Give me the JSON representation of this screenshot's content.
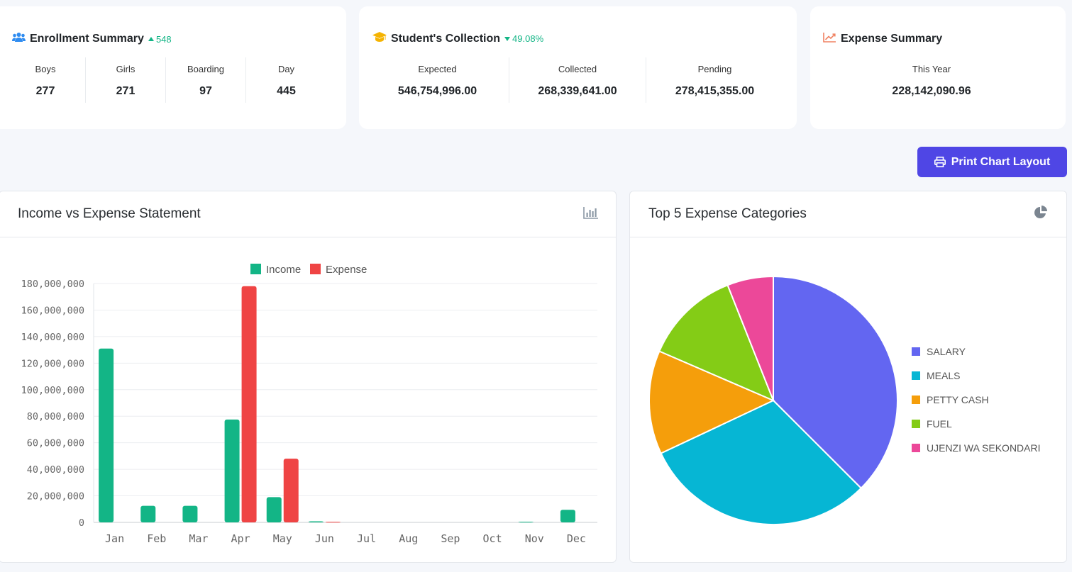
{
  "enrollment": {
    "title": "Enrollment Summary",
    "trend": "548",
    "items": [
      {
        "label": "Boys",
        "value": "277"
      },
      {
        "label": "Girls",
        "value": "271"
      },
      {
        "label": "Boarding",
        "value": "97"
      },
      {
        "label": "Day",
        "value": "445"
      }
    ]
  },
  "collection": {
    "title": "Student's Collection",
    "trend": "49.08%",
    "items": [
      {
        "label": "Expected",
        "value": "546,754,996.00"
      },
      {
        "label": "Collected",
        "value": "268,339,641.00"
      },
      {
        "label": "Pending",
        "value": "278,415,355.00"
      }
    ]
  },
  "expense_summary": {
    "title": "Expense Summary",
    "items": [
      {
        "label": "This Year",
        "value": "228,142,090.96"
      }
    ]
  },
  "toolbar": {
    "print_label": "Print Chart Layout"
  },
  "colors": {
    "income": "#13b586",
    "expense": "#ef4444",
    "accent": "#4f46e5",
    "trend_up": "#13b586"
  },
  "icons": {
    "enrollment": "users-icon",
    "collection": "graduation-cap-icon",
    "expense": "line-chart-icon",
    "print": "printer-icon",
    "bar_chart": "bar-chart-icon",
    "pie_chart": "pie-chart-icon"
  },
  "chart_data": [
    {
      "type": "bar",
      "title": "Income vs Expense Statement",
      "categories": [
        "Jan",
        "Feb",
        "Mar",
        "Apr",
        "May",
        "Jun",
        "Jul",
        "Aug",
        "Sep",
        "Oct",
        "Nov",
        "Dec"
      ],
      "series": [
        {
          "name": "Income",
          "color": "#13b586",
          "values": [
            131000000,
            12500000,
            12500000,
            77500000,
            19000000,
            800000,
            0,
            0,
            0,
            0,
            500000,
            9500000
          ]
        },
        {
          "name": "Expense",
          "color": "#ef4444",
          "values": [
            0,
            0,
            0,
            178000000,
            48000000,
            400000,
            0,
            0,
            0,
            0,
            0,
            0
          ]
        }
      ],
      "yticks": [
        "0",
        "20,000,000",
        "40,000,000",
        "60,000,000",
        "80,000,000",
        "100,000,000",
        "120,000,000",
        "140,000,000",
        "160,000,000",
        "180,000,000"
      ],
      "ylim": [
        0,
        180000000
      ],
      "legend": "top",
      "grid": true
    },
    {
      "type": "pie",
      "title": "Top 5 Expense Categories",
      "labels": [
        "SALARY",
        "MEALS",
        "PETTY CASH",
        "FUEL",
        "UJENZI WA SEKONDARI"
      ],
      "values": [
        37.5,
        30.5,
        13.5,
        12.5,
        6
      ],
      "colors": [
        "#6366f1",
        "#06b6d4",
        "#f59e0b",
        "#84cc16",
        "#ec4899"
      ],
      "legend": "right"
    }
  ]
}
